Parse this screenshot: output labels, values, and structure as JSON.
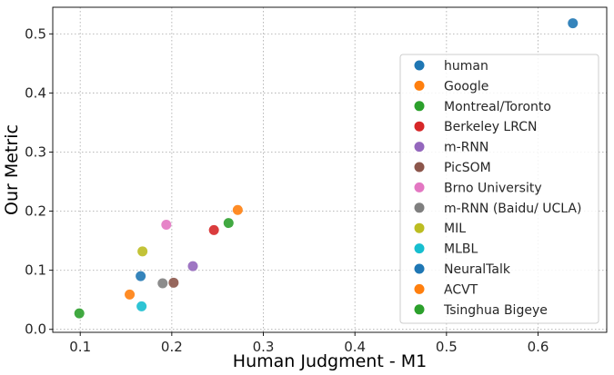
{
  "chart_data": {
    "type": "scatter",
    "xlabel": "Human Judgment - M1",
    "ylabel": "Our Metric",
    "xlim": [
      0.07,
      0.675
    ],
    "ylim": [
      -0.005,
      0.545
    ],
    "xticks": [
      0.1,
      0.2,
      0.3,
      0.4,
      0.5,
      0.6
    ],
    "xtick_labels": [
      "0.1",
      "0.2",
      "0.3",
      "0.4",
      "0.5",
      "0.6"
    ],
    "yticks": [
      0.0,
      0.1,
      0.2,
      0.3,
      0.4,
      0.5
    ],
    "ytick_labels": [
      "0.0",
      "0.1",
      "0.2",
      "0.3",
      "0.4",
      "0.5"
    ],
    "grid": true,
    "legend_position": "right",
    "series": [
      {
        "name": "human",
        "color": "#1f77b4",
        "x": 0.638,
        "y": 0.518
      },
      {
        "name": "Google",
        "color": "#ff7f0e",
        "x": 0.272,
        "y": 0.202
      },
      {
        "name": "Montreal/Toronto",
        "color": "#2ca02c",
        "x": 0.262,
        "y": 0.18
      },
      {
        "name": "Berkeley LRCN",
        "color": "#d62728",
        "x": 0.246,
        "y": 0.168
      },
      {
        "name": "m-RNN",
        "color": "#9467bd",
        "x": 0.223,
        "y": 0.107
      },
      {
        "name": "PicSOM",
        "color": "#8c564b",
        "x": 0.202,
        "y": 0.079
      },
      {
        "name": "Brno University",
        "color": "#e377c2",
        "x": 0.194,
        "y": 0.177
      },
      {
        "name": "m-RNN (Baidu/ UCLA)",
        "color": "#7f7f7f",
        "x": 0.19,
        "y": 0.078
      },
      {
        "name": "MIL",
        "color": "#bcbd22",
        "x": 0.168,
        "y": 0.132
      },
      {
        "name": "MLBL",
        "color": "#17becf",
        "x": 0.167,
        "y": 0.039
      },
      {
        "name": "NeuralTalk",
        "color": "#1f77b4",
        "x": 0.166,
        "y": 0.09
      },
      {
        "name": "ACVT",
        "color": "#ff7f0e",
        "x": 0.154,
        "y": 0.059
      },
      {
        "name": "Tsinghua Bigeye",
        "color": "#2ca02c",
        "x": 0.099,
        "y": 0.027
      }
    ]
  }
}
